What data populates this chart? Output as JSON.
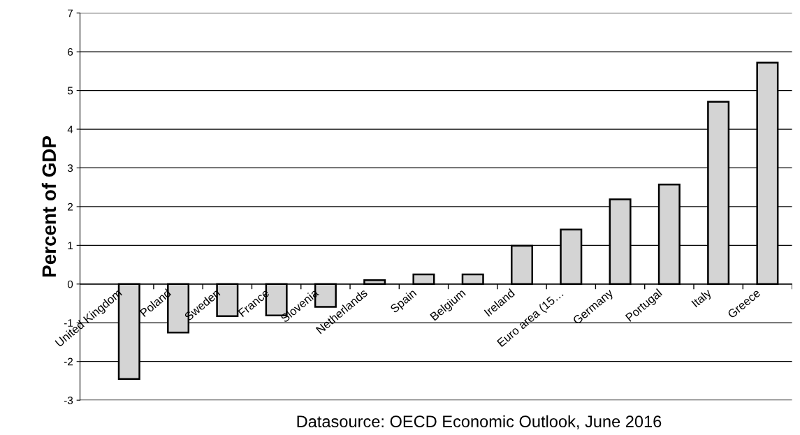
{
  "chart_data": {
    "type": "bar",
    "ylabel": "Percent of GDP",
    "categories": [
      "United Kingdom",
      "Poland",
      "Sweden",
      "France",
      "Slovenia",
      "Netherlands",
      "Spain",
      "Belgium",
      "Ireland",
      "Euro area (15…",
      "Germany",
      "Portugal",
      "Italy",
      "Greece"
    ],
    "values": [
      -2.45,
      -1.25,
      -0.83,
      -0.81,
      -0.59,
      0.1,
      0.25,
      0.25,
      0.99,
      1.41,
      2.19,
      2.57,
      4.71,
      5.72
    ],
    "color": "#d4d4d4",
    "ylim": [
      -3,
      7
    ],
    "yticks": [
      -3,
      -2,
      -1,
      0,
      1,
      2,
      3,
      4,
      5,
      6,
      7
    ],
    "grid": "y",
    "annotations": [
      "Datasource: OECD Economic Outlook, June 2016"
    ]
  }
}
